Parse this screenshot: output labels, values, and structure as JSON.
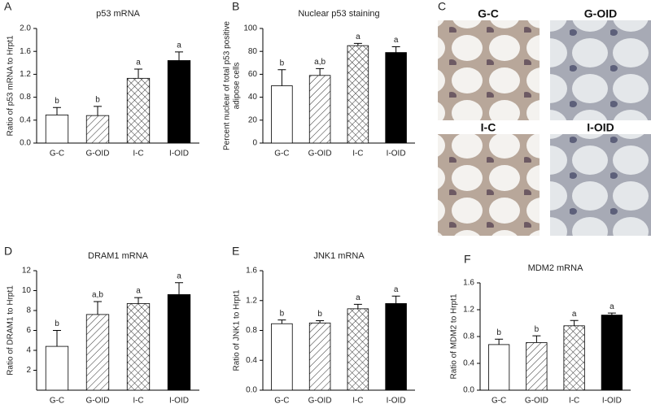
{
  "chart_data": [
    {
      "type": "bar",
      "panel": "A",
      "title": "p53 mRNA",
      "ylabel": [
        "Ratio of p53 mRNA to Hrpt1"
      ],
      "categories": [
        "G-C",
        "G-OID",
        "I-C",
        "I-OID"
      ],
      "values": [
        0.49,
        0.48,
        1.13,
        1.44
      ],
      "errors": [
        0.13,
        0.16,
        0.16,
        0.15
      ],
      "annotations": [
        "b",
        "b",
        "a",
        "a"
      ],
      "bar_styles": [
        "white",
        "hatch",
        "crosshatch",
        "black"
      ],
      "ylim": [
        0,
        2.0
      ],
      "yticks": [
        {
          "value": 0,
          "label": "0.0"
        },
        0.4,
        0.8,
        1.2,
        1.6,
        {
          "value": 2.0,
          "label": "2.0"
        }
      ]
    },
    {
      "type": "bar",
      "panel": "B",
      "title": "Nuclear p53 staining",
      "ylabel": [
        "Percent nuclear of total p53 positive",
        "adipose cells"
      ],
      "categories": [
        "G-C",
        "G-OID",
        "I-C",
        "I-OID"
      ],
      "values": [
        50,
        59,
        85,
        79
      ],
      "errors": [
        14,
        6,
        2,
        5
      ],
      "annotations": [
        "b",
        "a,b",
        "a",
        "a"
      ],
      "bar_styles": [
        "white",
        "hatch",
        "crosshatch",
        "black"
      ],
      "ylim": [
        0,
        100
      ],
      "yticks": [
        0,
        20,
        40,
        60,
        80,
        100
      ]
    },
    {
      "type": "bar",
      "panel": "D",
      "title": "DRAM1 mRNA",
      "ylabel": [
        "Ratio of DRAM1 to Hrpt1"
      ],
      "categories": [
        "G-C",
        "G-OID",
        "I-C",
        "I-OID"
      ],
      "values": [
        4.4,
        7.6,
        8.7,
        9.6
      ],
      "errors": [
        1.6,
        1.3,
        0.6,
        1.2
      ],
      "annotations": [
        "b",
        "a,b",
        "a",
        "a"
      ],
      "bar_styles": [
        "white",
        "hatch",
        "crosshatch",
        "black"
      ],
      "ylim": [
        0,
        12
      ],
      "yticks": [
        2,
        4,
        6,
        8,
        10,
        12
      ]
    },
    {
      "type": "bar",
      "panel": "E",
      "title": "JNK1 mRNA",
      "ylabel": [
        "Ratio of JNK1 to Hrpt1"
      ],
      "categories": [
        "G-C",
        "G-OID",
        "I-C",
        "I-OID"
      ],
      "values": [
        0.89,
        0.9,
        1.09,
        1.16
      ],
      "errors": [
        0.05,
        0.03,
        0.06,
        0.1
      ],
      "annotations": [
        "b",
        "b",
        "a",
        "a"
      ],
      "bar_styles": [
        "white",
        "hatch",
        "crosshatch",
        "black"
      ],
      "ylim": [
        0,
        1.6
      ],
      "yticks": [
        {
          "value": 0,
          "label": "0.0"
        },
        0.4,
        0.8,
        1.2,
        1.6
      ]
    },
    {
      "type": "bar",
      "panel": "F",
      "title": "MDM2 mRNA",
      "ylabel": [
        "Ratio of MDM2 to Hrpt1"
      ],
      "categories": [
        "G-C",
        "G-OID",
        "I-C",
        "I-OID"
      ],
      "values": [
        0.68,
        0.71,
        0.96,
        1.12
      ],
      "errors": [
        0.08,
        0.1,
        0.08,
        0.03
      ],
      "annotations": [
        "b",
        "b",
        "a",
        "a"
      ],
      "bar_styles": [
        "white",
        "hatch",
        "crosshatch",
        "black"
      ],
      "ylim": [
        0,
        1.6
      ],
      "yticks": [
        {
          "value": 0,
          "label": "0.0"
        },
        0.4,
        0.8,
        1.2,
        1.6
      ]
    }
  ],
  "images": {
    "panel": "C",
    "labels": [
      "G-C",
      "G-OID",
      "I-C",
      "I-OID"
    ]
  }
}
